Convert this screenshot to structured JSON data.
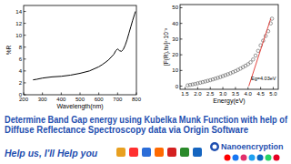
{
  "chart_data": [
    {
      "type": "line",
      "x_label": "Wavelength(nm)",
      "y_label": "%R",
      "x": [
        250,
        270,
        300,
        350,
        400,
        450,
        500,
        550,
        600,
        620,
        650,
        680,
        690,
        700,
        710,
        720,
        730,
        740,
        750,
        760,
        770,
        780,
        790,
        795
      ],
      "series": [
        {
          "color": "#000000",
          "values": [
            2.5,
            2.6,
            2.8,
            3.0,
            3.1,
            3.3,
            3.6,
            4.0,
            4.7,
            5.1,
            5.8,
            6.8,
            7.4,
            7.7,
            7.4,
            7.3,
            7.6,
            8.3,
            9.2,
            10.3,
            11.4,
            12.5,
            13.5,
            14.0
          ]
        }
      ],
      "xlim": [
        200,
        800
      ],
      "xticks": [
        200,
        300,
        400,
        500,
        600,
        700,
        800
      ],
      "ylim": [
        0,
        15
      ],
      "yticks": [
        0,
        2,
        4,
        6,
        8,
        10,
        12,
        14
      ],
      "grid": false
    },
    {
      "type": "scatter",
      "x_label": "Energy(eV)",
      "y_label": "[F(R).hν]²·10⁻³",
      "series": [
        {
          "type": "scatter",
          "marker": "circle",
          "color": "#555555",
          "x": [
            1.6,
            1.7,
            1.8,
            1.9,
            2.0,
            2.1,
            2.2,
            2.3,
            2.4,
            2.5,
            2.6,
            2.7,
            2.8,
            2.9,
            3.0,
            3.1,
            3.2,
            3.3,
            3.4,
            3.5,
            3.6,
            3.7,
            3.8,
            3.9,
            4.0,
            4.1,
            4.2,
            4.3,
            4.4,
            4.5,
            4.6,
            4.7,
            4.8,
            4.9,
            4.95
          ],
          "values": [
            0.5,
            0.8,
            1.1,
            1.4,
            1.8,
            2.2,
            2.6,
            3.0,
            3.4,
            3.8,
            4.3,
            4.8,
            5.3,
            5.8,
            6.4,
            7.0,
            7.6,
            8.2,
            8.9,
            9.6,
            10.4,
            11.2,
            12.1,
            13.0,
            14.0,
            15.2,
            17.0,
            19.5,
            22.5,
            26,
            29,
            32,
            35,
            40,
            43
          ]
        },
        {
          "type": "line",
          "line_style": "solid",
          "color": "#e0302a",
          "x": [
            4.03,
            4.9
          ],
          "values": [
            0,
            43
          ]
        }
      ],
      "annotations": [
        {
          "text": "Eg=4.03eV",
          "x": 4.12,
          "y": 4
        }
      ],
      "xlim": [
        1.3,
        5.2
      ],
      "xticks": [
        {
          "value": 1.5,
          "label": "1.5"
        },
        {
          "value": 2.0,
          "label": "2.0"
        },
        {
          "value": 2.5,
          "label": "2.5"
        },
        {
          "value": 3.0,
          "label": "3.0"
        },
        {
          "value": 3.5,
          "label": "3.5"
        },
        {
          "value": 4.0,
          "label": "4.0"
        },
        {
          "value": 4.5,
          "label": "4.5"
        },
        {
          "value": 5.0,
          "label": "5.0"
        }
      ],
      "ylim": [
        -2,
        52
      ],
      "yticks": [
        0,
        10,
        20,
        30,
        40,
        50
      ],
      "grid": false
    }
  ],
  "title_lines": [
    "Determine Band Gap energy using Kubelka Munk Function with help of",
    "Diffuse Reflectance Spectroscopy data via Origin Software"
  ],
  "footer": {
    "slogan": "Help us, I'll Help you",
    "brand": "Nanoencryption"
  }
}
